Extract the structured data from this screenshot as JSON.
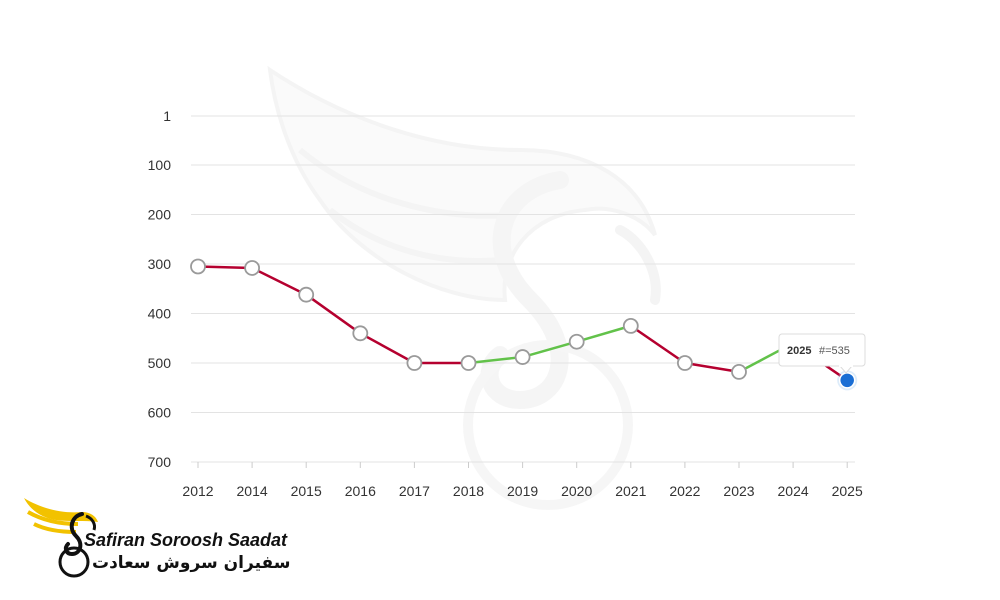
{
  "chart_data": {
    "type": "line",
    "title": "",
    "xlabel": "",
    "ylabel": "",
    "x": [
      "2012",
      "2014",
      "2015",
      "2016",
      "2017",
      "2018",
      "2019",
      "2020",
      "2021",
      "2022",
      "2023",
      "2024",
      "2025"
    ],
    "y_ticks": [
      1,
      100,
      200,
      300,
      400,
      500,
      600,
      700
    ],
    "ylim": [
      1,
      700
    ],
    "y_reversed": true,
    "grid": true,
    "series": [
      {
        "values": [
          305,
          308,
          362,
          440,
          500,
          500,
          488,
          457,
          425,
          500,
          518,
          460,
          535
        ],
        "markers": [
          true,
          true,
          true,
          true,
          true,
          true,
          true,
          true,
          true,
          true,
          true,
          false,
          true
        ]
      }
    ],
    "colors": {
      "rank_worse": "#b5002f",
      "rank_better": "#62c24a",
      "marker_fill": "#ffffff",
      "marker_stroke": "#9a9a9a",
      "highlight_fill": "#1a6ed4",
      "grid": "#e3e3e3"
    },
    "tooltip": {
      "year": "2025",
      "value": "#=535"
    }
  },
  "logo": {
    "text_en": "Safiran Soroosh Saadat",
    "text_fa": "سفیران سروش سعادت",
    "colors": {
      "wing": "#f2c200",
      "ink": "#111111"
    }
  }
}
